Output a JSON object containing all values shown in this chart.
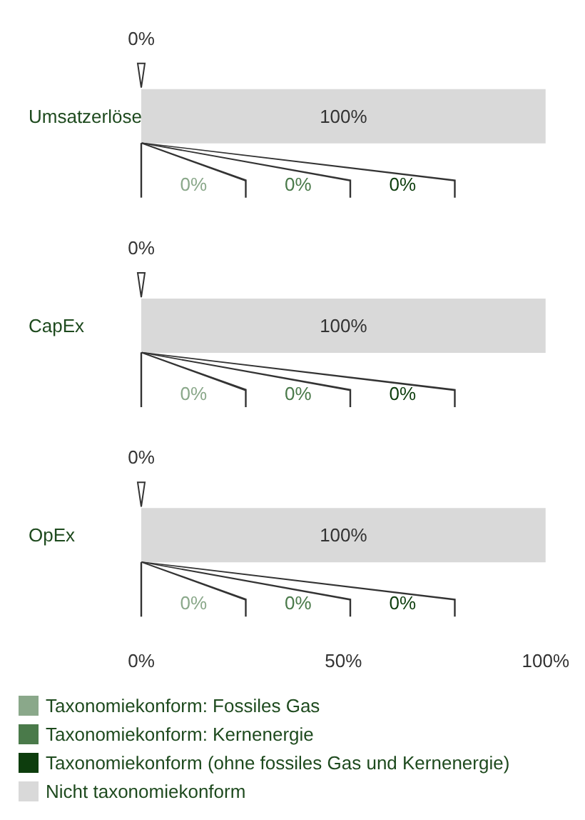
{
  "chart_data": {
    "type": "bar",
    "orientation": "horizontal",
    "stacked": true,
    "categories": [
      "Umsatzerlöse",
      "CapEx",
      "OpEx"
    ],
    "series": [
      {
        "name": "Taxonomiekonform: Fossiles Gas",
        "color": "#8aa88a",
        "values": [
          0,
          0,
          0
        ]
      },
      {
        "name": "Taxonomiekonform: Kernenergie",
        "color": "#4a7a4a",
        "values": [
          0,
          0,
          0
        ]
      },
      {
        "name": "Taxonomiekonform (ohne fossiles Gas und Kernenergie)",
        "color": "#0d3d0d",
        "values": [
          0,
          0,
          0
        ]
      },
      {
        "name": "Nicht taxonomiekonform",
        "color": "#d9d9d9",
        "values": [
          100,
          100,
          100
        ],
        "value_labels": [
          "100%",
          "100%",
          "100%"
        ]
      }
    ],
    "xlim": [
      0,
      100
    ],
    "xticks": [
      {
        "value": 0,
        "label": "0%"
      },
      {
        "value": 50,
        "label": "50%"
      },
      {
        "value": 100,
        "label": "100%"
      }
    ],
    "annotations": [
      "0%",
      "0%",
      "0%",
      "0%",
      "0%",
      "0%",
      "0%",
      "0%",
      "0%",
      "0%",
      "0%",
      "0%"
    ],
    "grid": false,
    "legend": "bottom left"
  }
}
